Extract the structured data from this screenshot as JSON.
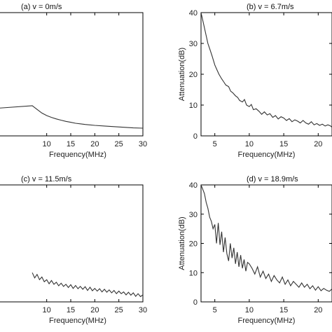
{
  "chart_data": [
    {
      "type": "line",
      "title": "(a)   v = 0m/s",
      "xlabel": "Frequency(MHz)",
      "ylabel": "",
      "xlim": [
        0,
        30
      ],
      "ylim": [
        0,
        40
      ],
      "xticks": [
        10,
        15,
        20,
        25,
        30
      ],
      "yticks": [],
      "grid": false,
      "series": [
        {
          "x": [
            0,
            7,
            8,
            9,
            10,
            11,
            12,
            13,
            14,
            15,
            16,
            17,
            18,
            20,
            22,
            24,
            26,
            28,
            30
          ],
          "y": [
            9,
            9.8,
            8.6,
            7.4,
            6.6,
            6.0,
            5.5,
            5.1,
            4.7,
            4.4,
            4.1,
            3.9,
            3.7,
            3.4,
            3.2,
            3.0,
            2.8,
            2.6,
            2.5
          ]
        }
      ]
    },
    {
      "type": "line",
      "title": "(b)   v = 6.7m/s",
      "xlabel": "Frequency(MHz)",
      "ylabel": "Attenuation(dB)",
      "xlim": [
        3,
        22
      ],
      "ylim": [
        0,
        40
      ],
      "xticks": [
        5,
        10,
        15,
        20
      ],
      "yticks": [
        0,
        10,
        20,
        30,
        40
      ],
      "grid": false,
      "series": [
        {
          "x": [
            3,
            3.3,
            3.6,
            4,
            4.3,
            4.6,
            5,
            5.3,
            5.6,
            6,
            6.3,
            6.6,
            7,
            7.3,
            7.6,
            8,
            8.3,
            8.6,
            9,
            9.3,
            9.6,
            10,
            10.3,
            10.6,
            11,
            11.4,
            11.8,
            12.2,
            12.6,
            13,
            13.4,
            13.8,
            14.2,
            14.6,
            15,
            15.4,
            15.8,
            16.2,
            16.6,
            17,
            17.4,
            17.8,
            18.2,
            18.6,
            19,
            19.4,
            19.8,
            20.2,
            20.6,
            21,
            21.4,
            21.8,
            22
          ],
          "y": [
            40,
            37,
            34,
            30,
            28,
            26,
            23,
            21.5,
            20,
            18.5,
            17.5,
            16.5,
            16,
            14.5,
            14,
            13,
            12.5,
            11.5,
            11,
            11.8,
            10,
            9.5,
            10.2,
            8.5,
            8.8,
            8,
            7,
            7.8,
            6.8,
            7.2,
            6,
            6.6,
            5.5,
            6.2,
            5.8,
            5,
            5.6,
            4.6,
            5.2,
            4.8,
            4.2,
            5,
            4.2,
            3.8,
            4.6,
            3.6,
            4,
            3.4,
            3.8,
            3.2,
            3.6,
            3.2,
            2.8
          ]
        }
      ]
    },
    {
      "type": "line",
      "title": "(c)   v = 11.5m/s",
      "xlabel": "Frequency(MHz)",
      "ylabel": "",
      "xlim": [
        0,
        30
      ],
      "ylim": [
        0,
        40
      ],
      "xticks": [
        10,
        15,
        20,
        25,
        30
      ],
      "yticks": [],
      "grid": false,
      "series": [
        {
          "x": [
            7,
            7.5,
            8,
            8.5,
            9,
            9.5,
            10,
            10.5,
            11,
            11.5,
            12,
            12.5,
            13,
            13.5,
            14,
            14.5,
            15,
            15.5,
            16,
            16.5,
            17,
            17.5,
            18,
            18.5,
            19,
            19.5,
            20,
            20.5,
            21,
            21.5,
            22,
            22.5,
            23,
            23.5,
            24,
            24.5,
            25,
            25.5,
            26,
            26.5,
            27,
            27.5,
            28,
            28.5,
            29,
            29.5,
            30
          ],
          "y": [
            10,
            8.2,
            9.4,
            7.6,
            8.5,
            6.9,
            7.6,
            6.2,
            7.3,
            6.0,
            6.7,
            5.5,
            6.4,
            5.3,
            6.0,
            4.9,
            5.9,
            4.6,
            5.6,
            4.5,
            5.3,
            4.3,
            5.2,
            3.9,
            5.0,
            3.8,
            4.6,
            3.7,
            4.5,
            3.4,
            4.3,
            3.3,
            4.1,
            3.1,
            3.9,
            2.8,
            3.7,
            2.8,
            3.4,
            2.4,
            3.3,
            2.3,
            3.1,
            1.9,
            2.8,
            1.8,
            2.4
          ]
        }
      ]
    },
    {
      "type": "line",
      "title": "(d)   v = 18.9m/s",
      "xlabel": "Frequency(MHz)",
      "ylabel": "Attenuation(dB)",
      "xlim": [
        3,
        22
      ],
      "ylim": [
        0,
        40
      ],
      "xticks": [
        5,
        10,
        15,
        20
      ],
      "yticks": [
        0,
        10,
        20,
        30,
        40
      ],
      "grid": false,
      "series": [
        {
          "x": [
            3,
            3.25,
            3.5,
            3.75,
            4,
            4.25,
            4.5,
            4.75,
            5,
            5.25,
            5.5,
            5.75,
            6,
            6.25,
            6.5,
            6.75,
            7,
            7.25,
            7.5,
            7.75,
            8,
            8.25,
            8.5,
            8.75,
            9,
            9.25,
            9.5,
            9.75,
            10,
            10.4,
            10.8,
            11.2,
            11.6,
            12,
            12.4,
            12.8,
            13.2,
            13.6,
            14,
            14.4,
            14.8,
            15.2,
            15.6,
            16,
            16.4,
            16.8,
            17.2,
            17.6,
            18,
            18.4,
            18.8,
            19.2,
            19.6,
            20,
            20.4,
            20.8,
            21.2,
            21.6,
            22
          ],
          "y": [
            40,
            38.5,
            37,
            34,
            32,
            29,
            27.5,
            25,
            26.5,
            20,
            27,
            19.5,
            24,
            17,
            22,
            16.5,
            14,
            20,
            15,
            18.5,
            13,
            17,
            12,
            16,
            11.5,
            14.5,
            10.5,
            13.5,
            13,
            11.5,
            9.5,
            12,
            8.5,
            10.5,
            8,
            9.5,
            7,
            9,
            7.5,
            6.5,
            8.5,
            6,
            7.5,
            5.5,
            7,
            6,
            5,
            6.5,
            5,
            6,
            4.5,
            5.5,
            4,
            5.2,
            3.8,
            4.6,
            4,
            3.6,
            4.4
          ]
        }
      ]
    }
  ]
}
